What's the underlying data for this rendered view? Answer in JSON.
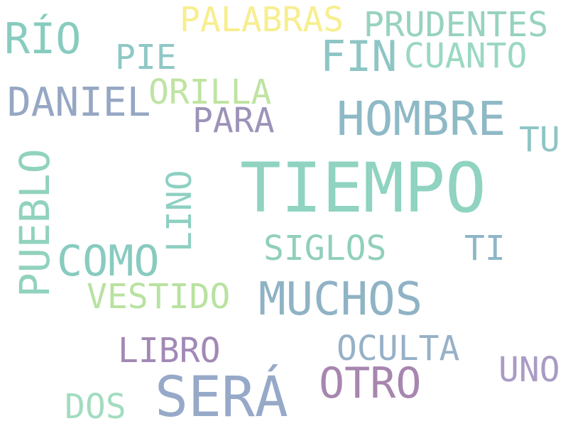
{
  "words": {
    "tiempo": {
      "text": "TIEMPO",
      "color": "#8fd3c0"
    },
    "sera": {
      "text": "SERÁ",
      "color": "#97a9c8"
    },
    "hombre": {
      "text": "HOMBRE",
      "color": "#8eb9c6"
    },
    "muchos": {
      "text": "MUCHOS",
      "color": "#8fb3c4"
    },
    "fin": {
      "text": "FIN",
      "color": "#8ec5c5"
    },
    "rio": {
      "text": "RÍO",
      "color": "#88ccbf"
    },
    "como": {
      "text": "COMO",
      "color": "#88cbbf"
    },
    "otro": {
      "text": "OTRO",
      "color": "#a786af"
    },
    "daniel": {
      "text": "DANIEL",
      "color": "#95a7c3"
    },
    "palabras": {
      "text": "PALABRAS",
      "color": "#f7ee8f"
    },
    "prudentes": {
      "text": "PRUDENTES",
      "color": "#97d2c0"
    },
    "vestido": {
      "text": "VESTIDO",
      "color": "#b8e2a0"
    },
    "orilla": {
      "text": "ORILLA",
      "color": "#bfe4a2"
    },
    "libro": {
      "text": "LIBRO",
      "color": "#a289b5"
    },
    "oculta": {
      "text": "OCULTA",
      "color": "#97b1c7"
    },
    "cuanto": {
      "text": "CUANTO",
      "color": "#9ad8c1"
    },
    "siglos": {
      "text": "SIGLOS",
      "color": "#91cfbd"
    },
    "ti": {
      "text": "TI",
      "color": "#8eb6c8"
    },
    "pie": {
      "text": "PIE",
      "color": "#8ec8c6"
    },
    "para": {
      "text": "PARA",
      "color": "#9d92b9"
    },
    "tu": {
      "text": "TU",
      "color": "#8ec5c5"
    },
    "uno": {
      "text": "UNO",
      "color": "#aa9bc5"
    },
    "dos": {
      "text": "DOS",
      "color": "#a3dcc0"
    },
    "pueblo": {
      "text": "PUEBLO",
      "color": "#91d2be"
    },
    "lino": {
      "text": "LINO",
      "color": "#8ed0c2"
    }
  }
}
